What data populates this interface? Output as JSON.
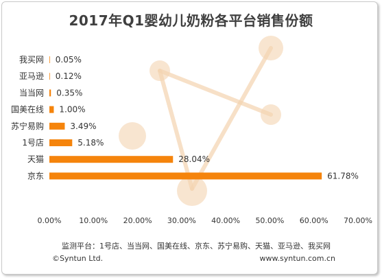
{
  "title": "2017年Q1婴幼儿奶粉各平台销售份额",
  "footer": {
    "source": "监测平台：1号店、当当网、国美在线、京东、苏宁易购、天猫、亚马逊、我买网",
    "copyright": "©Syntun Ltd.",
    "website": "www.syntun.com.cn"
  },
  "colors": {
    "bar": "#f5840c",
    "watermark": "#f4d4b0"
  },
  "chart_data": {
    "type": "bar",
    "orientation": "horizontal",
    "title": "2017年Q1婴幼儿奶粉各平台销售份额",
    "categories": [
      "我买网",
      "亚马逊",
      "当当网",
      "国美在线",
      "苏宁易购",
      "1号店",
      "天猫",
      "京东"
    ],
    "values": [
      0.05,
      0.12,
      0.35,
      1.0,
      3.49,
      5.18,
      28.04,
      61.78
    ],
    "value_labels": [
      "0.05%",
      "0.12%",
      "0.35%",
      "1.00%",
      "3.49%",
      "5.18%",
      "28.04%",
      "61.78%"
    ],
    "xlim": [
      0,
      70
    ],
    "x_ticks": [
      "0.00%",
      "10.00%",
      "20.00%",
      "30.00%",
      "40.00%",
      "50.00%",
      "60.00%",
      "70.00%"
    ],
    "grid": false,
    "legend": "none"
  }
}
